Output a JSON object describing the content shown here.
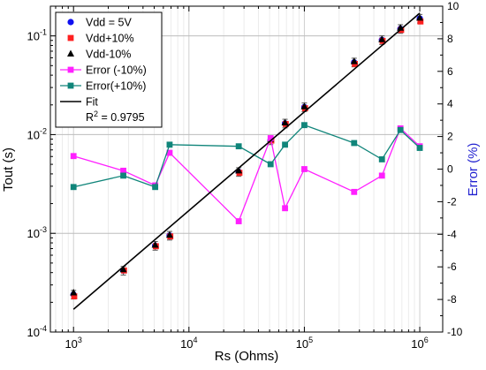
{
  "chart_data": {
    "type": "scatter",
    "xlabel": "Rs (Ohms)",
    "ylabel": "Tout (s)",
    "y2label": "Error (%)",
    "xscale": "log",
    "yscale": "log",
    "xlim": [
      630,
      1580000
    ],
    "ylim": [
      0.0001,
      0.2
    ],
    "y2lim": [
      -10,
      10
    ],
    "x_ticks": [
      {
        "v": 1000,
        "m": "10",
        "e": "3"
      },
      {
        "v": 10000,
        "m": "10",
        "e": "4"
      },
      {
        "v": 100000,
        "m": "10",
        "e": "5"
      },
      {
        "v": 1000000,
        "m": "10",
        "e": "6"
      }
    ],
    "y_ticks": [
      {
        "v": 0.0001,
        "m": "10",
        "e": "-4"
      },
      {
        "v": 0.001,
        "m": "10",
        "e": "-3"
      },
      {
        "v": 0.01,
        "m": "10",
        "e": "-2"
      },
      {
        "v": 0.1,
        "m": "10",
        "e": "-1"
      }
    ],
    "y2_ticks": [
      "-10",
      "-8",
      "-6",
      "-4",
      "-2",
      "0",
      "2",
      "4",
      "6",
      "8",
      "10"
    ],
    "grid": true,
    "legend_position": "top-left",
    "x": [
      1000,
      2700,
      5100,
      6800,
      27000,
      51000,
      68000,
      100000,
      270000,
      470000,
      680000,
      1000000
    ],
    "series": [
      {
        "name": "Vdd = 5V",
        "axis": "left",
        "marker": "circle",
        "color": "#1010f0",
        "values": [
          0.00024,
          0.00042,
          0.00075,
          0.00095,
          0.0042,
          0.0088,
          0.013,
          0.019,
          0.054,
          0.091,
          0.118,
          0.15
        ]
      },
      {
        "name": "Vdd+10%",
        "axis": "left",
        "marker": "square",
        "color": "#ff2020",
        "values": [
          0.00023,
          0.00042,
          0.00074,
          0.00093,
          0.0041,
          0.0087,
          0.0128,
          0.0185,
          0.052,
          0.089,
          0.115,
          0.14
        ]
      },
      {
        "name": "Vdd-10%",
        "axis": "left",
        "marker": "triangle",
        "color": "#000000",
        "values": [
          0.00025,
          0.00043,
          0.00076,
          0.00096,
          0.0043,
          0.009,
          0.0132,
          0.0192,
          0.055,
          0.092,
          0.12,
          0.152
        ]
      },
      {
        "name": "Error (-10%)",
        "axis": "right",
        "marker": "square-line",
        "color": "#ff20ff",
        "values": [
          0.8,
          -0.1,
          -1.0,
          1.0,
          -3.2,
          1.9,
          -2.4,
          0.0,
          -1.4,
          -0.4,
          2.5,
          1.4
        ]
      },
      {
        "name": "Error(+10%)",
        "axis": "right",
        "marker": "square-line",
        "color": "#10857a",
        "values": [
          -1.1,
          -0.4,
          -1.1,
          1.5,
          1.4,
          0.3,
          1.5,
          2.7,
          1.6,
          0.6,
          2.4,
          1.3
        ]
      },
      {
        "name": "Fit",
        "axis": "left",
        "marker": "line",
        "color": "#000000",
        "x": [
          1000,
          1000000
        ],
        "values": [
          0.00017,
          0.17
        ]
      }
    ],
    "annotation": {
      "prefix": "R",
      "sup": "2",
      "text": " = 0.9795"
    }
  }
}
